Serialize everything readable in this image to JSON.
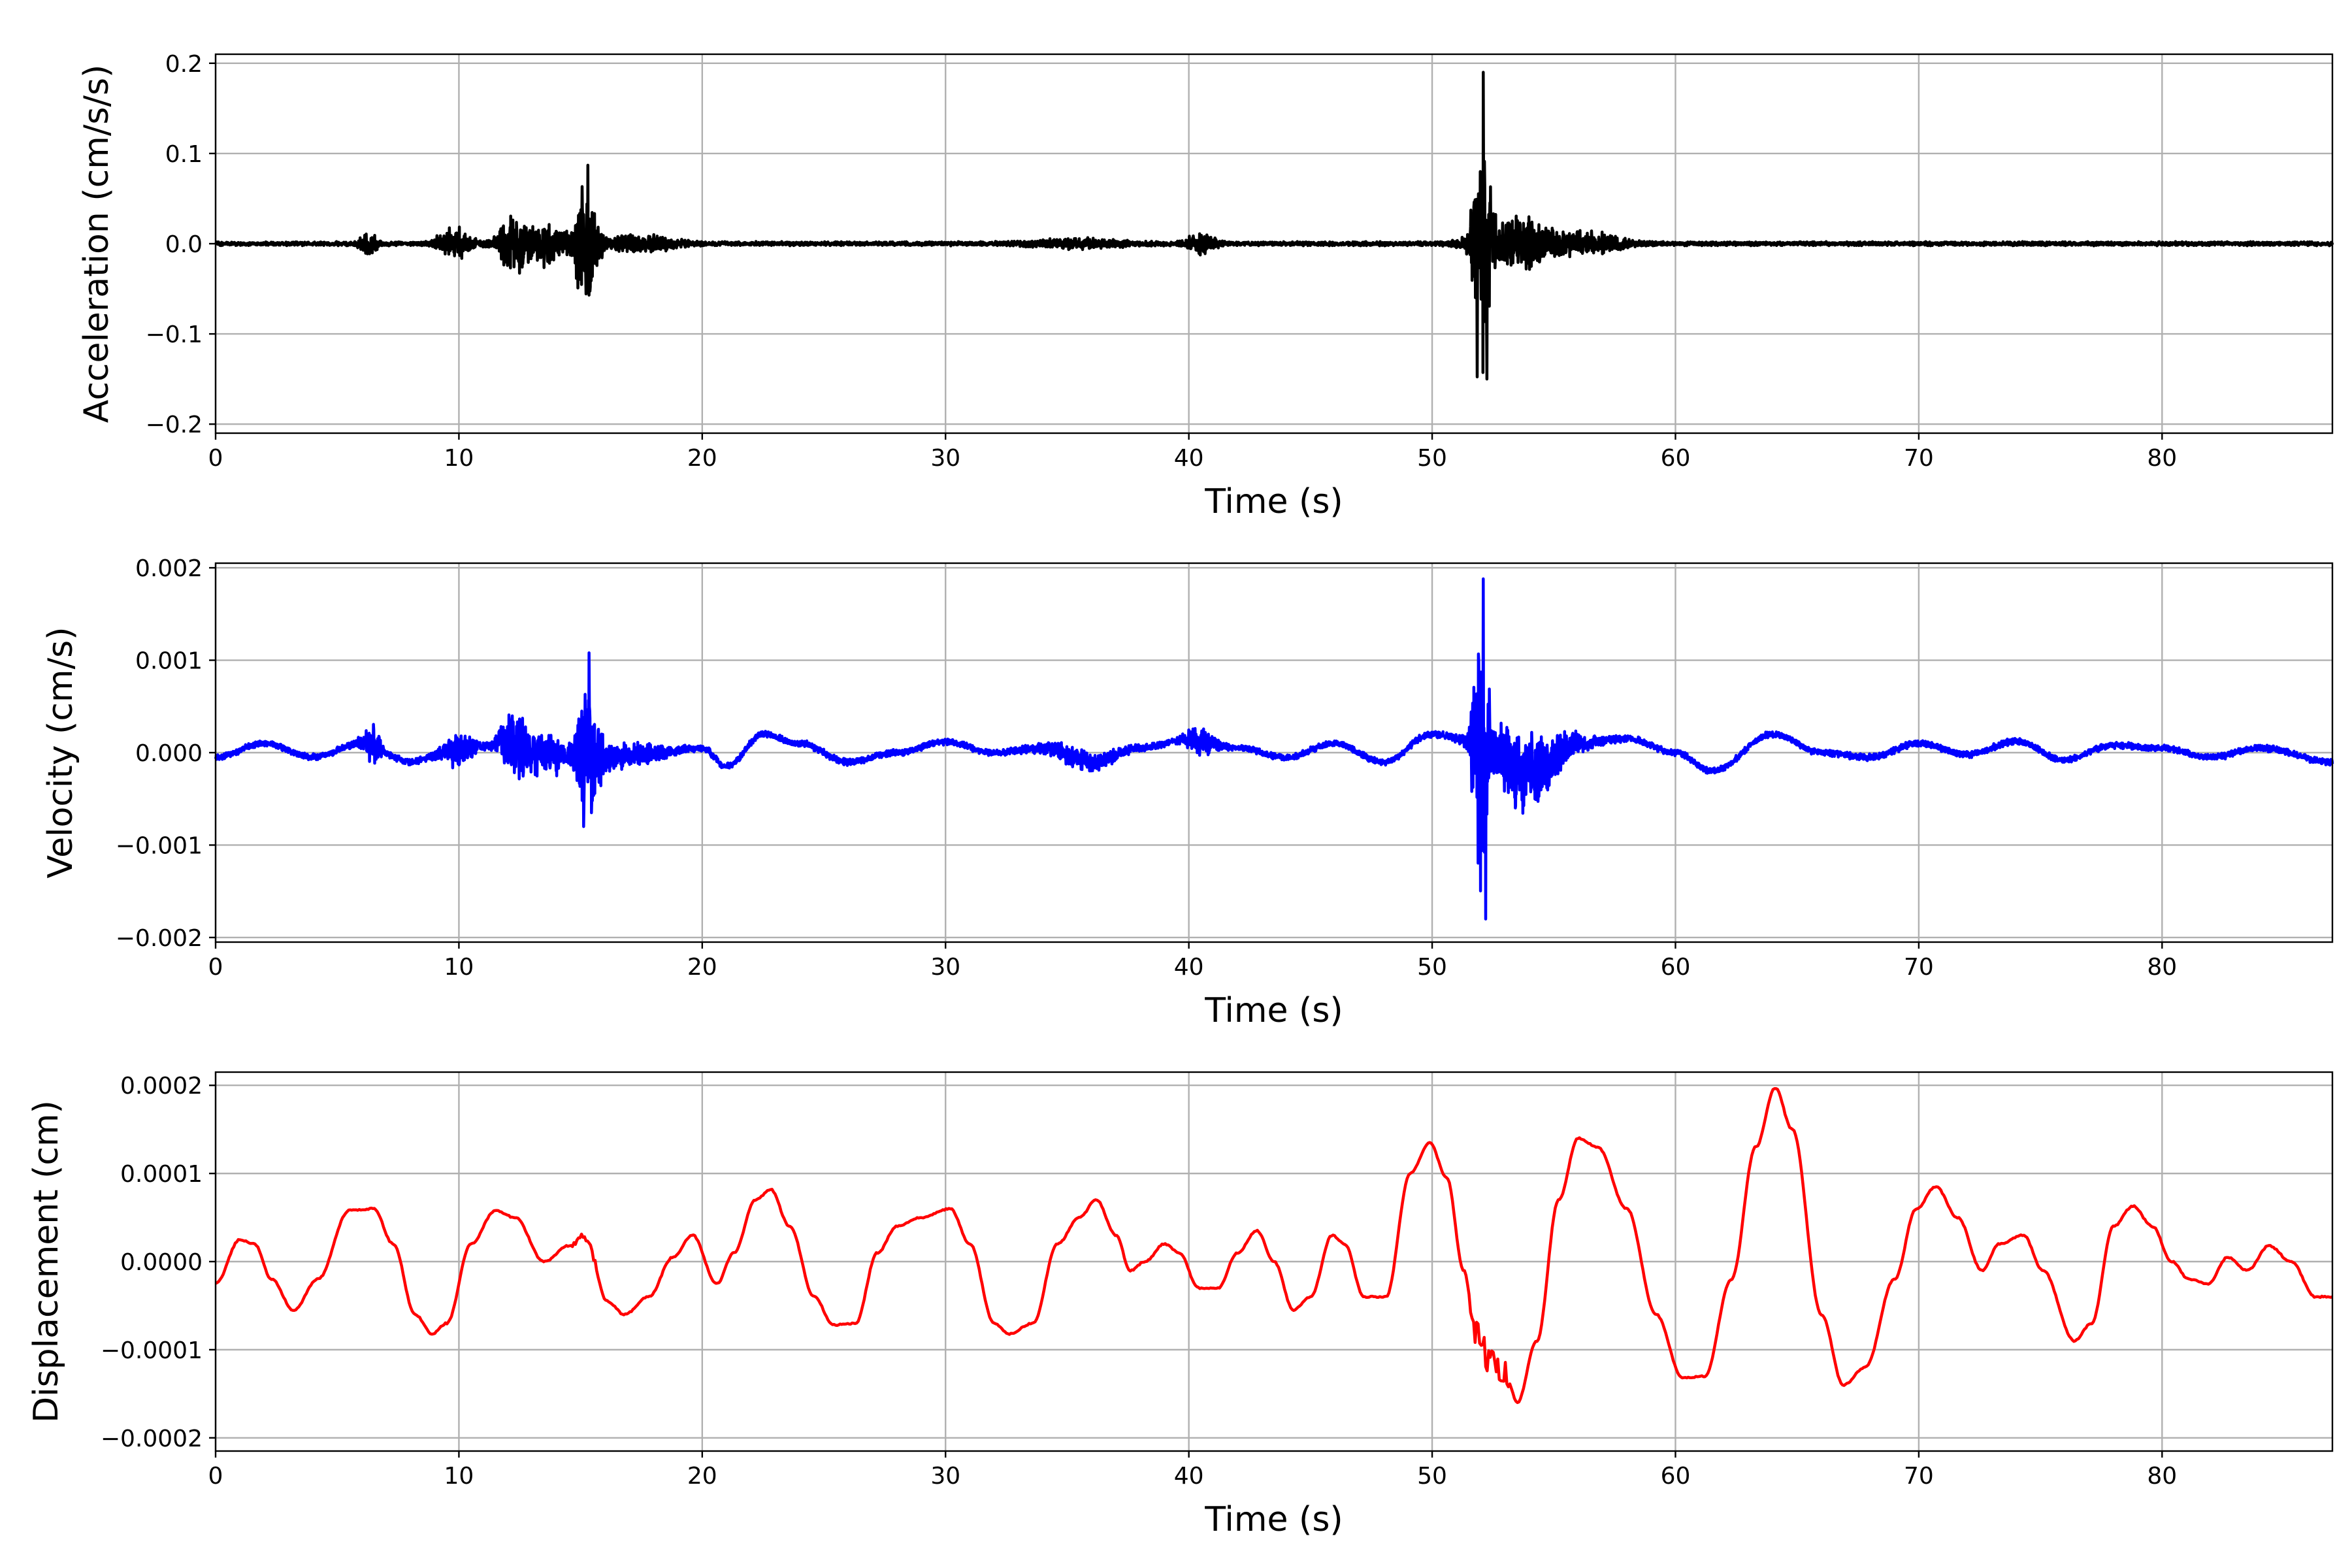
{
  "chart_data": [
    {
      "type": "line",
      "xlabel": "Time (s)",
      "ylabel": "Acceleration (cm/s/s)",
      "xlim": [
        0,
        87
      ],
      "ylim": [
        -0.21,
        0.21
      ],
      "xticks": [
        0,
        10,
        20,
        30,
        40,
        50,
        60,
        70,
        80
      ],
      "xtick_labels": [
        "0",
        "10",
        "20",
        "30",
        "40",
        "50",
        "60",
        "70",
        "80"
      ],
      "yticks": [
        -0.2,
        -0.1,
        0.0,
        0.1,
        0.2
      ],
      "ytick_labels": [
        "−0.2",
        "−0.1",
        "0.0",
        "0.1",
        "0.2"
      ],
      "grid": true,
      "color": "#000000",
      "series": [
        {
          "noise_model": "burst",
          "base_amplitude": 0.0025,
          "bursts": [
            {
              "t": 6.3,
              "width": 0.35,
              "amp": 0.016
            },
            {
              "t": 9.8,
              "width": 0.7,
              "amp": 0.018
            },
            {
              "t": 12.2,
              "width": 0.6,
              "amp": 0.035
            },
            {
              "t": 13.5,
              "width": 0.8,
              "amp": 0.025
            },
            {
              "t": 15.2,
              "width": 0.5,
              "amp": 0.07
            },
            {
              "t": 17.5,
              "width": 1.5,
              "amp": 0.01
            },
            {
              "t": 35.5,
              "width": 2.0,
              "amp": 0.005
            },
            {
              "t": 40.5,
              "width": 0.6,
              "amp": 0.012
            },
            {
              "t": 52.0,
              "width": 0.35,
              "amp": 0.17
            },
            {
              "t": 53.5,
              "width": 1.5,
              "amp": 0.035
            },
            {
              "t": 56.5,
              "width": 1.5,
              "amp": 0.012
            }
          ],
          "peaks": [
            {
              "x": 15.3,
              "y": 0.087
            },
            {
              "x": 15.35,
              "y": -0.057
            },
            {
              "x": 52.1,
              "y": 0.19
            },
            {
              "x": 52.25,
              "y": -0.15
            }
          ]
        }
      ]
    },
    {
      "type": "line",
      "xlabel": "Time (s)",
      "ylabel": "Velocity (cm/s)",
      "xlim": [
        0,
        87
      ],
      "ylim": [
        -0.00205,
        0.00205
      ],
      "xticks": [
        0,
        10,
        20,
        30,
        40,
        50,
        60,
        70,
        80
      ],
      "xtick_labels": [
        "0",
        "10",
        "20",
        "30",
        "40",
        "50",
        "60",
        "70",
        "80"
      ],
      "yticks": [
        -0.002,
        -0.001,
        0.0,
        0.001,
        0.002
      ],
      "ytick_labels": [
        "−0.002",
        "−0.001",
        "0.000",
        "0.001",
        "0.002"
      ],
      "grid": true,
      "color": "#0000ff",
      "series": [
        {
          "noise_model": "burst-plus-wave",
          "base_amplitude": 4e-05,
          "trend": [
            {
              "x": 0,
              "y": -5e-05
            },
            {
              "x": 2,
              "y": 0.0001
            },
            {
              "x": 4,
              "y": -5e-05
            },
            {
              "x": 6,
              "y": 0.0001
            },
            {
              "x": 8,
              "y": -0.0001
            },
            {
              "x": 10,
              "y": 5e-05
            },
            {
              "x": 12,
              "y": 0.0001
            },
            {
              "x": 14,
              "y": -5e-05
            },
            {
              "x": 16,
              "y": -5e-05
            },
            {
              "x": 18,
              "y": 0.0
            },
            {
              "x": 20,
              "y": 5e-05
            },
            {
              "x": 21,
              "y": -0.00015
            },
            {
              "x": 22.5,
              "y": 0.0002
            },
            {
              "x": 24,
              "y": 0.0001
            },
            {
              "x": 26,
              "y": -0.0001
            },
            {
              "x": 28,
              "y": 0.0
            },
            {
              "x": 30,
              "y": 0.00012
            },
            {
              "x": 32,
              "y": 0.0
            },
            {
              "x": 34,
              "y": 5e-05
            },
            {
              "x": 36,
              "y": -0.0001
            },
            {
              "x": 38,
              "y": 5e-05
            },
            {
              "x": 40,
              "y": 0.00015
            },
            {
              "x": 42,
              "y": 5e-05
            },
            {
              "x": 44,
              "y": -5e-05
            },
            {
              "x": 46,
              "y": 0.0001
            },
            {
              "x": 48,
              "y": -0.0001
            },
            {
              "x": 50,
              "y": 0.0002
            },
            {
              "x": 52,
              "y": 0.0001
            },
            {
              "x": 54,
              "y": -0.0002
            },
            {
              "x": 56,
              "y": 0.0001
            },
            {
              "x": 58,
              "y": 0.00015
            },
            {
              "x": 60,
              "y": 0.0
            },
            {
              "x": 61.5,
              "y": -0.0002
            },
            {
              "x": 64,
              "y": 0.0002
            },
            {
              "x": 66,
              "y": 0.0
            },
            {
              "x": 68,
              "y": -5e-05
            },
            {
              "x": 70,
              "y": 0.0001
            },
            {
              "x": 72,
              "y": -2e-05
            },
            {
              "x": 74,
              "y": 0.00012
            },
            {
              "x": 76,
              "y": -8e-05
            },
            {
              "x": 78,
              "y": 8e-05
            },
            {
              "x": 80,
              "y": 5e-05
            },
            {
              "x": 82,
              "y": -5e-05
            },
            {
              "x": 84,
              "y": 5e-05
            },
            {
              "x": 87,
              "y": -0.0001
            }
          ],
          "bursts": [
            {
              "t": 6.4,
              "width": 0.4,
              "amp": 0.00022
            },
            {
              "t": 10.0,
              "width": 0.6,
              "amp": 0.00022
            },
            {
              "t": 12.3,
              "width": 0.6,
              "amp": 0.0004
            },
            {
              "t": 13.6,
              "width": 0.8,
              "amp": 0.00025
            },
            {
              "t": 15.3,
              "width": 0.5,
              "amp": 0.0008
            },
            {
              "t": 17.0,
              "width": 1.5,
              "amp": 0.00012
            },
            {
              "t": 35.5,
              "width": 1.5,
              "amp": 0.0001
            },
            {
              "t": 40.5,
              "width": 0.6,
              "amp": 0.00015
            },
            {
              "t": 52.0,
              "width": 0.35,
              "amp": 0.0016
            },
            {
              "t": 53.5,
              "width": 1.2,
              "amp": 0.00045
            },
            {
              "t": 55.0,
              "width": 1.5,
              "amp": 0.00015
            }
          ],
          "peaks": [
            {
              "x": 15.35,
              "y": 0.00108
            },
            {
              "x": 15.45,
              "y": -0.00065
            },
            {
              "x": 52.1,
              "y": 0.00188
            },
            {
              "x": 52.2,
              "y": -0.0018
            }
          ]
        }
      ]
    },
    {
      "type": "line",
      "xlabel": "Time (s)",
      "ylabel": "Displacement (cm)",
      "xlim": [
        0,
        87
      ],
      "ylim": [
        -0.000215,
        0.000215
      ],
      "xticks": [
        0,
        10,
        20,
        30,
        40,
        50,
        60,
        70,
        80
      ],
      "xtick_labels": [
        "0",
        "10",
        "20",
        "30",
        "40",
        "50",
        "60",
        "70",
        "80"
      ],
      "yticks": [
        -0.0002,
        -0.0001,
        0.0,
        0.0001,
        0.0002
      ],
      "ytick_labels": [
        "−0.0002",
        "−0.0001",
        "0.0000",
        "0.0001",
        "0.0002"
      ],
      "grid": true,
      "color": "#ff0000",
      "series": [
        {
          "noise_model": "smooth",
          "points": [
            {
              "x": 0,
              "y": -2.5e-05
            },
            {
              "x": 1,
              "y": 2.5e-05
            },
            {
              "x": 1.6,
              "y": 2e-05
            },
            {
              "x": 2.3,
              "y": -2e-05
            },
            {
              "x": 3.2,
              "y": -5.5e-05
            },
            {
              "x": 4.2,
              "y": -2e-05
            },
            {
              "x": 5.5,
              "y": 5.8e-05
            },
            {
              "x": 6.5,
              "y": 6e-05
            },
            {
              "x": 7.3,
              "y": 2e-05
            },
            {
              "x": 8.2,
              "y": -6e-05
            },
            {
              "x": 8.9,
              "y": -8.2e-05
            },
            {
              "x": 9.5,
              "y": -7e-05
            },
            {
              "x": 10.5,
              "y": 2e-05
            },
            {
              "x": 11.5,
              "y": 5.8e-05
            },
            {
              "x": 12.3,
              "y": 5e-05
            },
            {
              "x": 13.5,
              "y": 0.0
            },
            {
              "x": 14.5,
              "y": 1.8e-05
            },
            {
              "x": 15.2,
              "y": 2.8e-05
            },
            {
              "x": 16.1,
              "y": -4.5e-05
            },
            {
              "x": 16.8,
              "y": -6e-05
            },
            {
              "x": 17.8,
              "y": -4e-05
            },
            {
              "x": 18.8,
              "y": 5e-06
            },
            {
              "x": 19.6,
              "y": 3e-05
            },
            {
              "x": 20.6,
              "y": -2.5e-05
            },
            {
              "x": 21.3,
              "y": 1e-05
            },
            {
              "x": 22.2,
              "y": 7e-05
            },
            {
              "x": 22.8,
              "y": 8.2e-05
            },
            {
              "x": 23.6,
              "y": 4e-05
            },
            {
              "x": 24.6,
              "y": -4e-05
            },
            {
              "x": 25.4,
              "y": -7.2e-05
            },
            {
              "x": 26.3,
              "y": -7e-05
            },
            {
              "x": 27.2,
              "y": 1e-05
            },
            {
              "x": 28,
              "y": 4e-05
            },
            {
              "x": 29,
              "y": 5e-05
            },
            {
              "x": 30.2,
              "y": 6e-05
            },
            {
              "x": 31,
              "y": 2e-05
            },
            {
              "x": 32,
              "y": -7e-05
            },
            {
              "x": 32.6,
              "y": -8.2e-05
            },
            {
              "x": 33.6,
              "y": -7e-05
            },
            {
              "x": 34.6,
              "y": 2e-05
            },
            {
              "x": 35.5,
              "y": 5e-05
            },
            {
              "x": 36.2,
              "y": 7e-05
            },
            {
              "x": 37,
              "y": 3e-05
            },
            {
              "x": 37.6,
              "y": -1e-05
            },
            {
              "x": 38.2,
              "y": 0.0
            },
            {
              "x": 39,
              "y": 2e-05
            },
            {
              "x": 39.6,
              "y": 1e-05
            },
            {
              "x": 40.4,
              "y": -3e-05
            },
            {
              "x": 41.2,
              "y": -3e-05
            },
            {
              "x": 42,
              "y": 1e-05
            },
            {
              "x": 42.8,
              "y": 3.5e-05
            },
            {
              "x": 43.5,
              "y": 0.0
            },
            {
              "x": 44.3,
              "y": -5.5e-05
            },
            {
              "x": 45,
              "y": -4e-05
            },
            {
              "x": 45.9,
              "y": 3e-05
            },
            {
              "x": 46.4,
              "y": 2e-05
            },
            {
              "x": 47.2,
              "y": -4e-05
            },
            {
              "x": 48.1,
              "y": -4e-05
            },
            {
              "x": 49.1,
              "y": 0.0001
            },
            {
              "x": 49.9,
              "y": 0.000135
            },
            {
              "x": 50.6,
              "y": 9.5e-05
            },
            {
              "x": 51.3,
              "y": -1e-05
            },
            {
              "x": 51.8,
              "y": -8e-05
            },
            {
              "x": 52.4,
              "y": -0.000115
            },
            {
              "x": 53,
              "y": -0.000125
            },
            {
              "x": 53.5,
              "y": -0.00016
            },
            {
              "x": 54.3,
              "y": -9e-05
            },
            {
              "x": 55.2,
              "y": 7e-05
            },
            {
              "x": 56,
              "y": 0.00014
            },
            {
              "x": 56.8,
              "y": 0.00013
            },
            {
              "x": 58,
              "y": 6e-05
            },
            {
              "x": 59.2,
              "y": -6e-05
            },
            {
              "x": 60.3,
              "y": -0.000132
            },
            {
              "x": 61.2,
              "y": -0.00013
            },
            {
              "x": 62.3,
              "y": -2e-05
            },
            {
              "x": 63.3,
              "y": 0.00013
            },
            {
              "x": 64.1,
              "y": 0.000197
            },
            {
              "x": 64.8,
              "y": 0.00015
            },
            {
              "x": 66,
              "y": -6e-05
            },
            {
              "x": 66.9,
              "y": -0.00014
            },
            {
              "x": 67.8,
              "y": -0.00012
            },
            {
              "x": 69,
              "y": -2e-05
            },
            {
              "x": 69.9,
              "y": 6e-05
            },
            {
              "x": 70.7,
              "y": 8.5e-05
            },
            {
              "x": 71.6,
              "y": 5e-05
            },
            {
              "x": 72.6,
              "y": -1e-05
            },
            {
              "x": 73.3,
              "y": 2e-05
            },
            {
              "x": 74.3,
              "y": 3e-05
            },
            {
              "x": 75.1,
              "y": -1e-05
            },
            {
              "x": 76.4,
              "y": -9e-05
            },
            {
              "x": 77.1,
              "y": -7e-05
            },
            {
              "x": 78,
              "y": 4e-05
            },
            {
              "x": 78.8,
              "y": 6.3e-05
            },
            {
              "x": 79.6,
              "y": 4e-05
            },
            {
              "x": 80.4,
              "y": 0.0
            },
            {
              "x": 81.1,
              "y": -2e-05
            },
            {
              "x": 81.9,
              "y": -2.5e-05
            },
            {
              "x": 82.7,
              "y": 5e-06
            },
            {
              "x": 83.5,
              "y": -1e-05
            },
            {
              "x": 84.4,
              "y": 1.8e-05
            },
            {
              "x": 85.3,
              "y": 0.0
            },
            {
              "x": 86.3,
              "y": -4e-05
            },
            {
              "x": 87,
              "y": -4e-05
            }
          ]
        }
      ]
    }
  ]
}
